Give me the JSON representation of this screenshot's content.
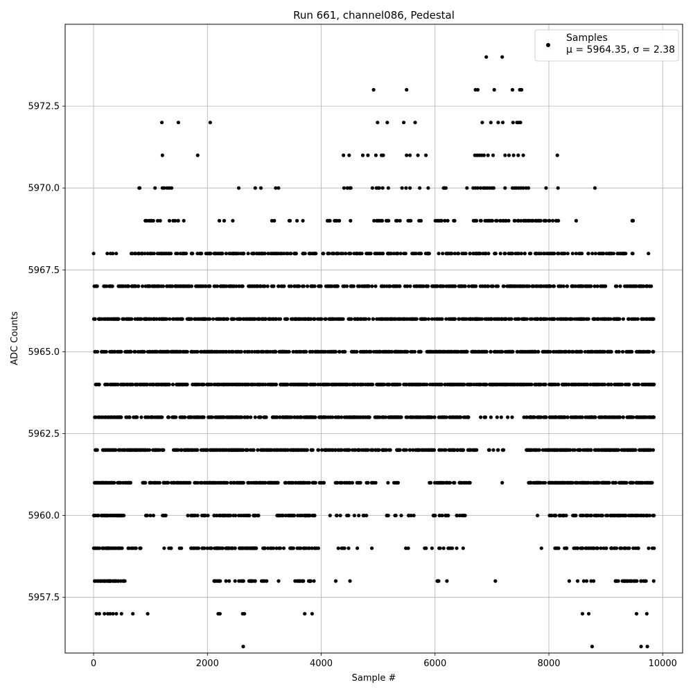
{
  "chart_data": {
    "type": "scatter",
    "title": "Run 661, channel086, Pedestal",
    "xlabel": "Sample #",
    "ylabel": "ADC Counts",
    "xlim": [
      -500,
      10350
    ],
    "ylim": [
      5955.8,
      5975.0
    ],
    "xticks": [
      0,
      2000,
      4000,
      6000,
      8000,
      10000
    ],
    "xtick_labels": [
      "0",
      "2000",
      "4000",
      "6000",
      "8000",
      "10000"
    ],
    "yticks": [
      5957.5,
      5960.0,
      5962.5,
      5965.0,
      5967.5,
      5970.0,
      5972.5
    ],
    "ytick_labels": [
      "5957.5",
      "5960.0",
      "5962.5",
      "5965.0",
      "5967.5",
      "5970.0",
      "5972.5"
    ],
    "grid": true,
    "legend": {
      "placement": "top-right",
      "entries": [
        {
          "label_line1": "Samples",
          "label_line2": "μ = 5964.35, σ = 2.38",
          "marker_color": "#000000"
        }
      ]
    },
    "marker_color": "#000000",
    "series": [
      {
        "name": "Samples",
        "description_values": "ADC count levels observed per sample; each level spans the listed sample-index ranges",
        "levels": [
          {
            "y": 5974,
            "x": [
              6900,
              7180
            ]
          },
          {
            "y": 5973,
            "x": [
              4920,
              5500,
              6710,
              6750,
              7040,
              7360,
              7490,
              7510,
              7520
            ]
          },
          {
            "y": 5972,
            "x": [
              1200,
              1490,
              2050,
              4990,
              5160,
              5450,
              5650,
              6830,
              6980,
              7110,
              7190,
              7370,
              7440,
              7470,
              7500
            ]
          },
          {
            "y": 5971,
            "x": [
              1210,
              1830,
              4390,
              4490,
              4730,
              4820,
              4960,
              5060,
              5090,
              5500,
              5560,
              5700,
              5840,
              6700,
              6740,
              6780,
              6820,
              6860,
              6930,
              7020,
              7230,
              7300,
              7380,
              7460,
              7550,
              8150
            ]
          },
          {
            "y": 5970,
            "x": [
              800,
              810,
              1080,
              1210,
              1240,
              1290,
              1330,
              1370,
              2550,
              2840,
              2940,
              3200,
              3250,
              4400,
              4460,
              4500,
              4520,
              4900,
              4970,
              5000,
              5020,
              5080,
              5180,
              5420,
              5490,
              5560,
              5730,
              5880,
              6150,
              6170,
              6190,
              6560,
              6670,
              6710,
              6750,
              6800,
              6850,
              6880,
              6920,
              6960,
              7000,
              7030,
              7230,
              7360,
              7400,
              7430,
              7470,
              7510,
              7550,
              7600,
              7640,
              7950,
              8160,
              8810
            ]
          },
          {
            "y": 5969,
            "x": [
              [
                800,
                1700,
                16
              ],
              [
                2200,
                2450,
                3
              ],
              [
                3050,
                3700,
                6
              ],
              [
                4000,
                4550,
                10
              ],
              [
                4900,
                5200,
                12
              ],
              [
                5300,
                5800,
                8
              ],
              [
                5950,
                6500,
                10
              ],
              [
                6600,
                7950,
                60
              ],
              [
                8000,
                8300,
                8
              ],
              [
                8480,
                8480,
                1
              ],
              [
                9400,
                9480,
                3
              ]
            ]
          },
          {
            "y": 5968,
            "x": [
              [
                0,
                0,
                1
              ],
              [
                230,
                400,
                4
              ],
              [
                650,
                9500,
                300
              ],
              [
                9750,
                9750,
                1
              ]
            ]
          },
          {
            "y": 5967,
            "x": [
              [
                0,
                9850,
                420
              ]
            ]
          },
          {
            "y": 5966,
            "x": [
              [
                0,
                9850,
                540
              ]
            ]
          },
          {
            "y": 5965,
            "x": [
              [
                0,
                9850,
                580
              ]
            ]
          },
          {
            "y": 5964,
            "x": [
              [
                0,
                9850,
                680
              ]
            ]
          },
          {
            "y": 5963,
            "x": [
              [
                0,
                6600,
                380
              ],
              [
                6800,
                7450,
                8
              ],
              [
                7550,
                9850,
                160
              ]
            ]
          },
          {
            "y": 5962,
            "x": [
              [
                0,
                1250,
                70
              ],
              [
                1400,
                6750,
                280
              ],
              [
                6900,
                7250,
                8
              ],
              [
                7600,
                9850,
                140
              ]
            ]
          },
          {
            "y": 5961,
            "x": [
              [
                0,
                650,
                45
              ],
              [
                850,
                4050,
                160
              ],
              [
                4250,
                5550,
                25
              ],
              [
                5900,
                6650,
                30
              ],
              [
                7180,
                7180,
                1
              ],
              [
                7600,
                9850,
                150
              ]
            ]
          },
          {
            "y": 5960,
            "x": [
              [
                0,
                550,
                35
              ],
              [
                880,
                1450,
                10
              ],
              [
                1650,
                2900,
                50
              ],
              [
                3200,
                3950,
                40
              ],
              [
                4150,
                4850,
                12
              ],
              [
                5150,
                5650,
                10
              ],
              [
                5950,
                6550,
                20
              ],
              [
                7800,
                7800,
                1
              ],
              [
                8000,
                9850,
                90
              ]
            ]
          },
          {
            "y": 5959,
            "x": [
              [
                0,
                850,
                40
              ],
              [
                1200,
                1550,
                6
              ],
              [
                1700,
                2900,
                70
              ],
              [
                2950,
                3950,
                35
              ],
              [
                4250,
                4650,
                6
              ],
              [
                4890,
                4890,
                1
              ],
              [
                5380,
                6550,
                14
              ],
              [
                7870,
                7870,
                1
              ],
              [
                8100,
                9850,
                55
              ]
            ]
          },
          {
            "y": 5958,
            "x": [
              [
                0,
                550,
                30
              ],
              [
                2100,
                2850,
                22
              ],
              [
                2950,
                3300,
                5
              ],
              [
                3500,
                3900,
                15
              ],
              [
                4250,
                4680,
                2
              ],
              [
                5900,
                6420,
                4
              ],
              [
                7060,
                7060,
                1
              ],
              [
                8190,
                8830,
                6
              ],
              [
                9150,
                9850,
                25
              ]
            ]
          },
          {
            "y": 5957,
            "x": [
              50,
              100,
              190,
              250,
              290,
              340,
              400,
              490,
              690,
              950,
              2190,
              2220,
              2620,
              2650,
              3710,
              3840,
              8590,
              8700,
              9540,
              9720
            ]
          },
          {
            "y": 5956,
            "x": [
              2630,
              8760,
              9620,
              9730
            ]
          }
        ]
      }
    ]
  }
}
